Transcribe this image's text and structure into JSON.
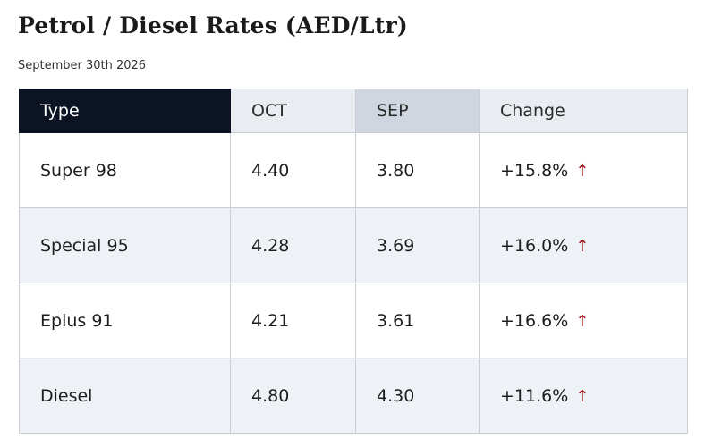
{
  "header": {
    "title": "Petrol / Diesel Rates (AED/Ltr)",
    "date": "September 30th 2026"
  },
  "table": {
    "columns": [
      "Type",
      "OCT",
      "SEP",
      "Change"
    ],
    "rows": [
      {
        "type": "Super 98",
        "oct": "4.40",
        "sep": "3.80",
        "change": "+15.8%",
        "direction": "up"
      },
      {
        "type": "Special 95",
        "oct": "4.28",
        "sep": "3.69",
        "change": "+16.0%",
        "direction": "up"
      },
      {
        "type": "Eplus 91",
        "oct": "4.21",
        "sep": "3.61",
        "change": "+16.6%",
        "direction": "up"
      },
      {
        "type": "Diesel",
        "oct": "4.80",
        "sep": "4.30",
        "change": "+11.6%",
        "direction": "up"
      }
    ]
  },
  "colors": {
    "header_dark": "#0c1424",
    "header_light": "#e9edf2",
    "header_sep": "#cfd6df",
    "change_red": "#a3161c",
    "row_alt": "#eef1f5"
  },
  "icons": {
    "change_arrow": "arrow-up-icon"
  }
}
